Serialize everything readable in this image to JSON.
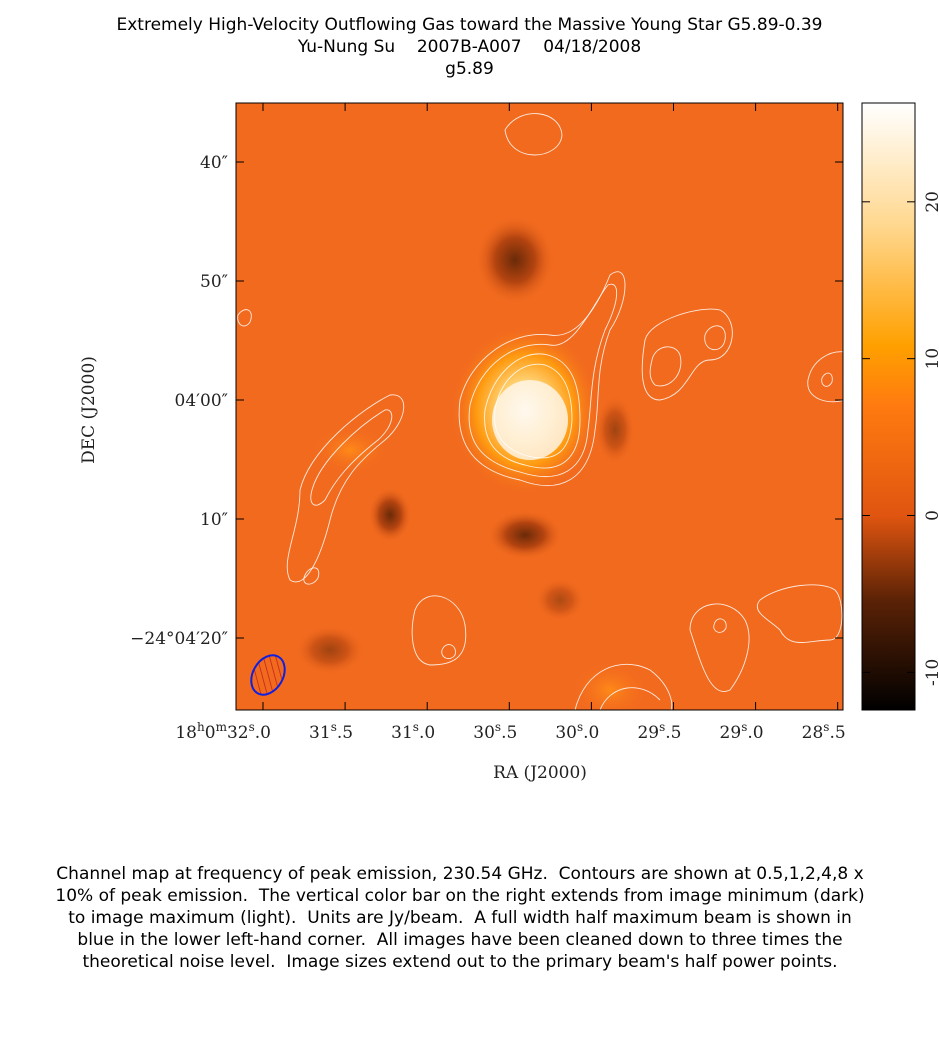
{
  "header": {
    "title": "Extremely High-Velocity Outflowing Gas toward the Massive Young Star G5.89-0.39",
    "author": "Yu-Nung Su",
    "project": "2007B-A007",
    "date": "04/18/2008",
    "source": "g5.89"
  },
  "map": {
    "x_label": "RA (J2000)",
    "y_label": "DEC (J2000)",
    "ra_ticks": [
      [
        "18",
        "h",
        "0",
        "m",
        "32",
        "s",
        ".0"
      ],
      [
        "31",
        "s",
        ".5"
      ],
      [
        "31",
        "s",
        ".0"
      ],
      [
        "30",
        "s",
        ".5"
      ],
      [
        "30",
        "s",
        ".0"
      ],
      [
        "29",
        "s",
        ".5"
      ],
      [
        "29",
        "s",
        ".0"
      ],
      [
        "28",
        "s",
        ".5"
      ]
    ],
    "dec_ticks": [
      "40″",
      "50″",
      "04′00″",
      "10″",
      "−24°04′20″"
    ]
  },
  "colorbar": {
    "lim": [
      -12.4,
      26.3
    ],
    "ticks": [
      -10,
      0,
      10,
      20
    ]
  },
  "caption": "Channel map at frequency of peak emission, 230.54 GHz.  Contours are shown at 0.5,1,2,4,8 x 10% of peak emission.  The vertical color bar on the right extends from image minimum (dark) to image maximum (light).  Units are Jy/beam.  A full width half maximum beam is shown in blue in the lower left-hand corner.  All images have been cleaned down to three times the theoretical noise level.  Image sizes extend out to the primary beam's half power points."
}
